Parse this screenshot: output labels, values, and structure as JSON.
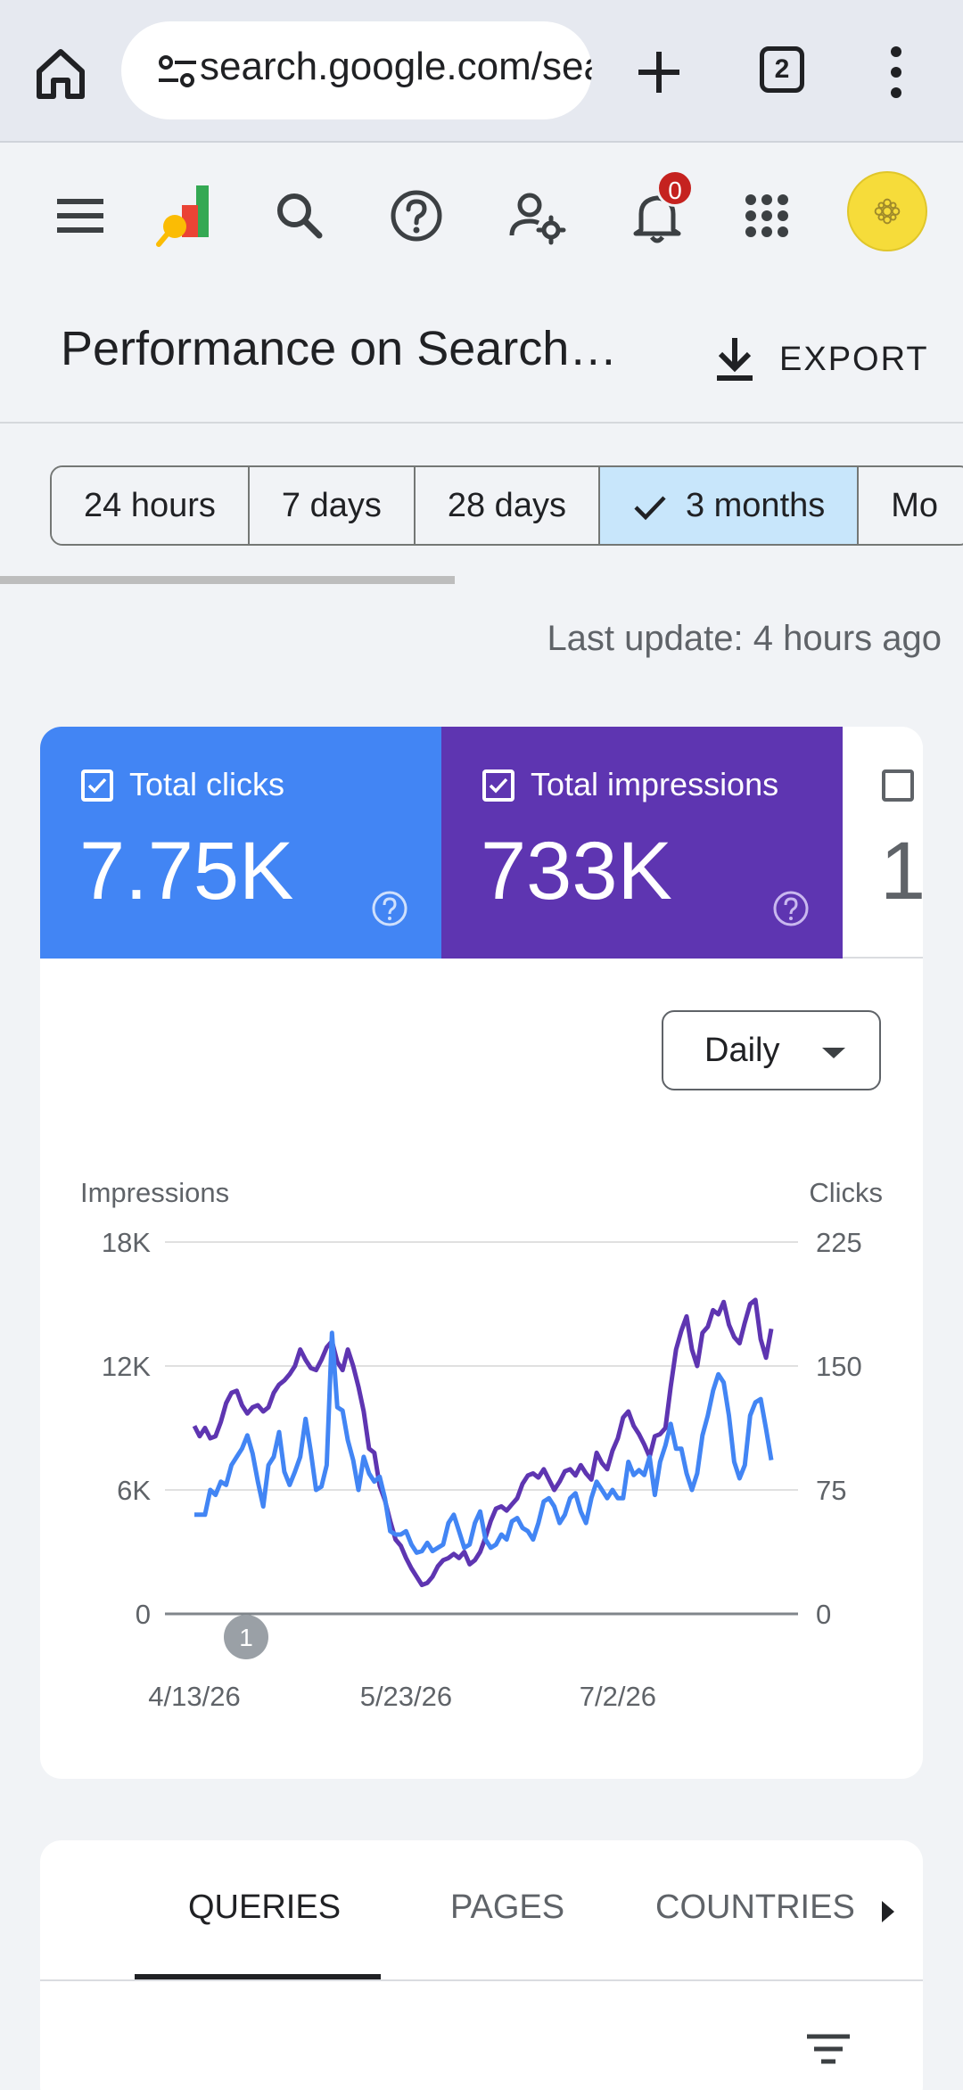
{
  "browser": {
    "url": "search.google.com/search-console",
    "tab_count": "2"
  },
  "header": {
    "notification_count": "0"
  },
  "page": {
    "title": "Performance on Search…",
    "export_label": "EXPORT"
  },
  "ranges": {
    "items": [
      "24 hours",
      "7 days",
      "28 days",
      "3 months",
      "Mo"
    ],
    "selected": "3 months"
  },
  "last_update": "Last update: 4 hours ago",
  "metrics": {
    "clicks": {
      "label": "Total clicks",
      "value": "7.75K",
      "checked": true,
      "color": "#4285f4"
    },
    "impressions": {
      "label": "Total impressions",
      "value": "733K",
      "checked": true,
      "color": "#5e35b1"
    },
    "ctr": {
      "value": "1",
      "checked": false
    }
  },
  "granularity": "Daily",
  "annotation_marker": "1",
  "chart_data": {
    "type": "line",
    "title": "",
    "left_axis_label": "Impressions",
    "right_axis_label": "Clicks",
    "left_ticks": [
      "0",
      "6K",
      "12K",
      "18K"
    ],
    "right_ticks": [
      "0",
      "75",
      "150",
      "225"
    ],
    "ylim_left": [
      0,
      18000
    ],
    "ylim_right": [
      0,
      225
    ],
    "x_ticks": [
      "4/13/26",
      "5/23/26",
      "7/2/26"
    ],
    "x_tick_index": [
      0,
      40,
      80
    ],
    "series": [
      {
        "name": "Impressions",
        "axis": "left",
        "color": "#5e35b1",
        "values": [
          9100,
          8600,
          9000,
          8500,
          8600,
          9300,
          10200,
          10700,
          10800,
          10100,
          9700,
          10000,
          10100,
          9800,
          10000,
          10700,
          11100,
          11300,
          11600,
          12000,
          12800,
          12300,
          11900,
          11800,
          12300,
          12900,
          13200,
          12200,
          11800,
          12800,
          12000,
          11000,
          9800,
          8000,
          7800,
          6200,
          5500,
          4500,
          3600,
          3300,
          2700,
          2200,
          1800,
          1400,
          1500,
          1800,
          2300,
          2600,
          2700,
          2900,
          2700,
          3000,
          2400,
          2600,
          3000,
          3700,
          4500,
          5100,
          5200,
          5000,
          5300,
          5600,
          6300,
          6700,
          6800,
          6600,
          7000,
          6500,
          6000,
          6400,
          6900,
          7000,
          6700,
          7200,
          6800,
          6500,
          7800,
          7300,
          7000,
          7900,
          8500,
          9500,
          9800,
          9100,
          8700,
          8200,
          7600,
          8600,
          8700,
          9000,
          11000,
          12800,
          13700,
          14400,
          12800,
          12000,
          13600,
          13900,
          14700,
          14500,
          15100,
          14000,
          13400,
          13100,
          14100,
          15000,
          15200,
          13300,
          12400,
          13800
        ]
      },
      {
        "name": "Clicks",
        "axis": "right",
        "color": "#4285f4",
        "values": [
          60,
          60,
          60,
          75,
          72,
          80,
          78,
          90,
          95,
          100,
          108,
          97,
          80,
          65,
          90,
          95,
          110,
          86,
          78,
          86,
          95,
          118,
          98,
          75,
          77,
          90,
          170,
          125,
          123,
          105,
          93,
          75,
          95,
          85,
          80,
          83,
          70,
          50,
          48,
          48,
          50,
          42,
          37,
          38,
          43,
          38,
          40,
          42,
          55,
          60,
          50,
          40,
          42,
          55,
          62,
          45,
          40,
          42,
          48,
          45,
          56,
          58,
          52,
          50,
          45,
          55,
          68,
          70,
          65,
          55,
          60,
          70,
          73,
          62,
          55,
          70,
          80,
          75,
          70,
          75,
          70,
          70,
          92,
          84,
          87,
          84,
          95,
          72,
          92,
          102,
          115,
          100,
          100,
          85,
          75,
          85,
          108,
          120,
          135,
          145,
          140,
          120,
          92,
          82,
          90,
          120,
          128,
          130,
          112,
          93
        ]
      }
    ]
  },
  "table_tabs": {
    "items": [
      "QUERIES",
      "PAGES",
      "COUNTRIES"
    ],
    "active": "QUERIES"
  }
}
